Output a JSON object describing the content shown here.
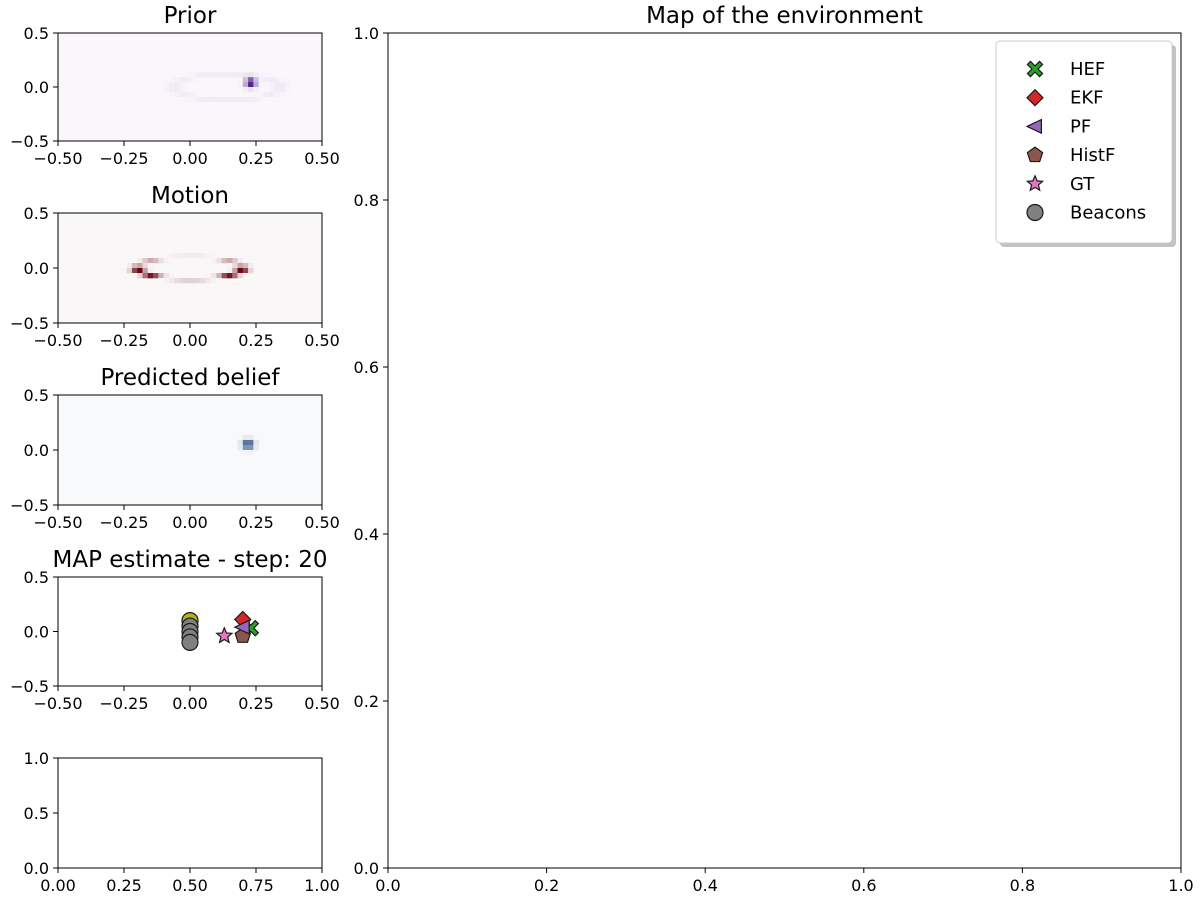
{
  "chart_data": [
    {
      "id": "prior",
      "type": "heatmap",
      "title": "Prior",
      "xlim": [
        -0.5,
        0.5
      ],
      "ylim": [
        -0.5,
        0.5
      ],
      "xticks": [
        "−0.50",
        "−0.25",
        "0.00",
        "0.25",
        "0.50"
      ],
      "yticks": [
        "0.5",
        "0.0",
        "−0.5"
      ],
      "colormap": "Purples",
      "color": "#3f007d",
      "features": [
        {
          "kind": "peak",
          "x": 0.23,
          "y": 0.04,
          "intensity": 1.0
        },
        {
          "kind": "faint-ring",
          "cx": 0.14,
          "cy": 0.0,
          "r": 0.2,
          "intensity": 0.05
        }
      ]
    },
    {
      "id": "motion",
      "type": "heatmap",
      "title": "Motion",
      "xlim": [
        -0.5,
        0.5
      ],
      "ylim": [
        -0.5,
        0.5
      ],
      "xticks": [
        "−0.50",
        "−0.25",
        "0.00",
        "0.25",
        "0.50"
      ],
      "yticks": [
        "0.5",
        "0.0",
        "−0.5"
      ],
      "colormap": "Reds",
      "color": "#67000d",
      "features": [
        {
          "kind": "ring",
          "cx": 0.0,
          "cy": 0.0,
          "rx": 0.2,
          "ry": 0.1,
          "intensity_bottom": 1.0,
          "intensity_top": 0.35
        }
      ]
    },
    {
      "id": "predicted",
      "type": "heatmap",
      "title": "Predicted belief",
      "xlim": [
        -0.5,
        0.5
      ],
      "ylim": [
        -0.5,
        0.5
      ],
      "xticks": [
        "−0.50",
        "−0.25",
        "0.00",
        "0.25",
        "0.50"
      ],
      "yticks": [
        "0.5",
        "0.0",
        "−0.5"
      ],
      "colormap": "Blues",
      "color": "#08306b",
      "features": [
        {
          "kind": "peak",
          "x": 0.22,
          "y": 0.05,
          "intensity": 1.0
        }
      ]
    },
    {
      "id": "map-estimate",
      "type": "scatter",
      "title": "MAP estimate - step: 20",
      "xlim": [
        -0.5,
        0.5
      ],
      "ylim": [
        -0.5,
        0.5
      ],
      "xticks": [
        "−0.50",
        "−0.25",
        "0.00",
        "0.25",
        "0.50"
      ],
      "yticks": [
        "0.5",
        "0.0",
        "−0.5"
      ],
      "series": [
        {
          "name": "Beacons",
          "marker": "circle",
          "color": "#808080",
          "points": [
            [
              0.0,
              0.1
            ],
            [
              0.0,
              0.05
            ],
            [
              0.0,
              0.0
            ],
            [
              0.0,
              -0.05
            ],
            [
              0.0,
              -0.1
            ]
          ],
          "highlight": {
            "index": 0,
            "color": "#b5b116"
          }
        },
        {
          "name": "GT",
          "marker": "star",
          "color": "#e377c2",
          "points": [
            [
              0.13,
              -0.04
            ]
          ]
        },
        {
          "name": "HEF",
          "marker": "x",
          "color": "#2ca02c",
          "points": [
            [
              0.23,
              0.03
            ]
          ]
        },
        {
          "name": "EKF",
          "marker": "diamond",
          "color": "#d62728",
          "points": [
            [
              0.2,
              0.11
            ]
          ]
        },
        {
          "name": "HistF",
          "marker": "pentagon",
          "color": "#8c564b",
          "points": [
            [
              0.2,
              -0.04
            ]
          ]
        },
        {
          "name": "PF",
          "marker": "triangle-left",
          "color": "#9467bd",
          "points": [
            [
              0.2,
              0.04
            ]
          ]
        }
      ]
    },
    {
      "id": "empty-small",
      "type": "scatter",
      "title": "",
      "xlim": [
        0,
        1
      ],
      "ylim": [
        0,
        1
      ],
      "xticks": [
        "0.00",
        "0.25",
        "0.50",
        "0.75",
        "1.00"
      ],
      "yticks": [
        "1.0",
        "0.5",
        "0.0"
      ],
      "series": []
    },
    {
      "id": "environment-map",
      "type": "scatter",
      "title": "Map of the environment",
      "xlim": [
        0,
        1
      ],
      "ylim": [
        0,
        1
      ],
      "xticks": [
        "0.0",
        "0.2",
        "0.4",
        "0.6",
        "0.8",
        "1.0"
      ],
      "yticks": [
        "1.0",
        "0.8",
        "0.6",
        "0.4",
        "0.2",
        "0.0"
      ],
      "legend_position": "top-right",
      "legend": [
        {
          "label": "HEF",
          "marker": "x",
          "color": "#2ca02c"
        },
        {
          "label": "EKF",
          "marker": "diamond",
          "color": "#d62728"
        },
        {
          "label": "PF",
          "marker": "triangle-left",
          "color": "#9467bd"
        },
        {
          "label": "HistF",
          "marker": "pentagon",
          "color": "#8c564b"
        },
        {
          "label": "GT",
          "marker": "star",
          "color": "#e377c2"
        },
        {
          "label": "Beacons",
          "marker": "circle",
          "color": "#808080"
        }
      ],
      "series": []
    }
  ]
}
